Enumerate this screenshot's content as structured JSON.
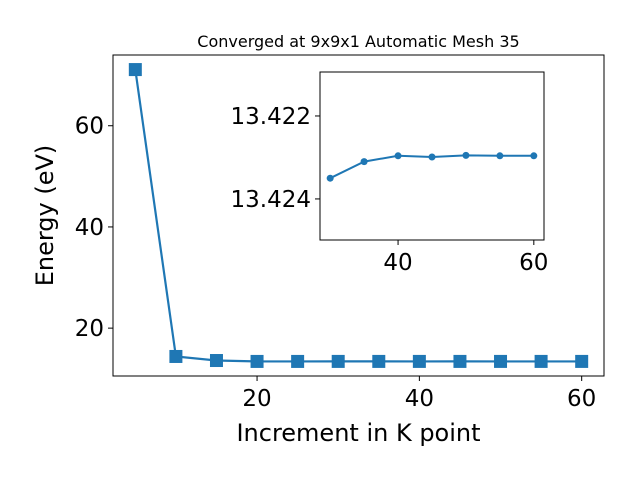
{
  "chart_data": [
    {
      "type": "line",
      "title": "Converged at 9x9x1 Automatic Mesh 35",
      "x_label": "Increment in K point",
      "y_label": "Energy (eV)",
      "x": [
        5,
        10,
        15,
        20,
        25,
        30,
        35,
        40,
        45,
        50,
        55,
        60
      ],
      "series": [
        {
          "color": "#1f77b4",
          "marker": "square",
          "values": [
            71.1,
            14.4,
            13.6,
            13.42,
            13.42,
            13.4235,
            13.4231,
            13.42296,
            13.42299,
            13.42295,
            13.42296,
            13.42296
          ]
        }
      ],
      "xlim": [
        2.25,
        62.75
      ],
      "xticks": [
        20,
        40,
        60
      ],
      "ylim": [
        10.54,
        73.98
      ],
      "yticks": [
        20,
        40,
        60
      ]
    },
    {
      "type": "line",
      "x": [
        30,
        35,
        40,
        45,
        50,
        55,
        60
      ],
      "series": [
        {
          "color": "#1f77b4",
          "marker": "circle",
          "values": [
            13.4235,
            13.4231,
            13.42296,
            13.42299,
            13.42295,
            13.42296,
            13.42296
          ]
        }
      ],
      "xlim": [
        28.5,
        61.5
      ],
      "xticks": [
        40,
        60
      ],
      "ylim": [
        13.42499,
        13.42094
      ],
      "yticks": [
        13.422,
        13.424
      ]
    }
  ]
}
